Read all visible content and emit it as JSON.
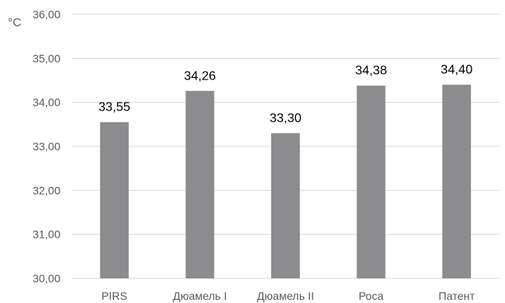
{
  "chart_data": {
    "type": "bar",
    "categories": [
      "PIRS",
      "Дюамель I",
      "Дюамель II",
      "Роса",
      "Патент"
    ],
    "values": [
      33.55,
      34.26,
      33.3,
      34.38,
      34.4
    ],
    "data_labels": [
      "33,55",
      "34,26",
      "33,30",
      "34,38",
      "34,40"
    ],
    "ylim": [
      30,
      36
    ],
    "yticks": [
      30,
      31,
      32,
      33,
      34,
      35,
      36
    ],
    "ytick_labels": [
      "30,00",
      "31,00",
      "32,00",
      "33,00",
      "34,00",
      "35,00",
      "36,00"
    ],
    "y_unit": "°C",
    "grid": true,
    "bar_color": "#8c8c8e",
    "grid_color": "#d9d9d9"
  }
}
